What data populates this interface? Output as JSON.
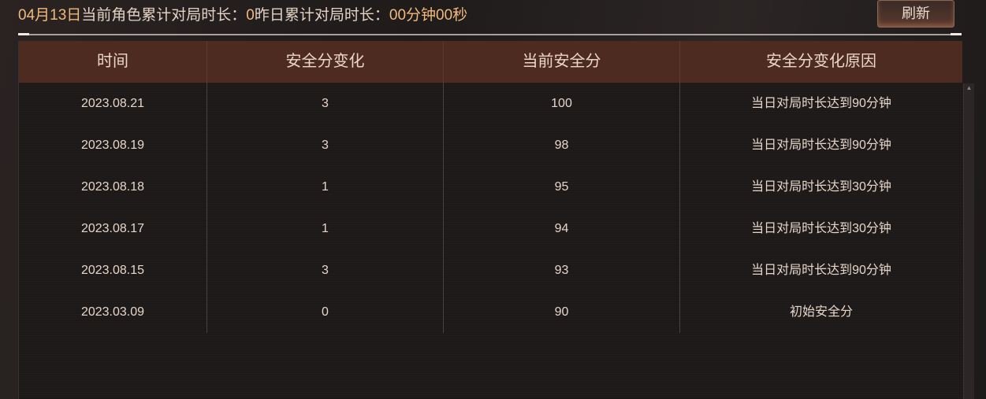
{
  "summary": {
    "date": "04月13日",
    "current_label": "当前角色累计对局时长：",
    "current_value": "0",
    "yesterday_label": "昨日累计对局时长：",
    "yesterday_value": "00分钟00秒"
  },
  "refresh_label": "刷新",
  "table": {
    "headers": [
      "时间",
      "安全分变化",
      "当前安全分",
      "安全分变化原因"
    ],
    "rows": [
      [
        "2023.08.21",
        "3",
        "100",
        "当日对局时长达到90分钟"
      ],
      [
        "2023.08.19",
        "3",
        "98",
        "当日对局时长达到90分钟"
      ],
      [
        "2023.08.18",
        "1",
        "95",
        "当日对局时长达到30分钟"
      ],
      [
        "2023.08.17",
        "1",
        "94",
        "当日对局时长达到30分钟"
      ],
      [
        "2023.08.15",
        "3",
        "93",
        "当日对局时长达到90分钟"
      ],
      [
        "2023.03.09",
        "0",
        "90",
        "初始安全分"
      ]
    ]
  },
  "colors": {
    "highlight": "#f2b97c",
    "header_bg": "#4d2b21",
    "body_bg": "#1d1919"
  },
  "icons": {
    "scroll_up": "triangle-up-icon"
  }
}
